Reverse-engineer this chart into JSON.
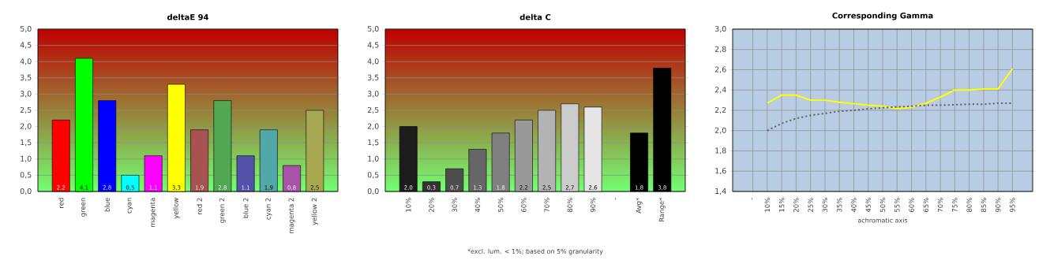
{
  "chart_data": [
    {
      "type": "bar",
      "title": "deltaE 94",
      "categories": [
        "red",
        "green",
        "blue",
        "cyan",
        "magenta",
        "yellow",
        "red 2",
        "green 2",
        "blue 2",
        "cyan 2",
        "magenta 2",
        "yellow 2"
      ],
      "values": [
        2.2,
        4.1,
        2.8,
        0.5,
        1.1,
        3.3,
        1.9,
        2.8,
        1.1,
        1.9,
        0.8,
        2.5
      ],
      "value_labels": [
        "2,2",
        "4,1",
        "2,8",
        "0,5",
        "1,1",
        "3,3",
        "1,9",
        "2,8",
        "1,1",
        "1,9",
        "0,8",
        "2,5"
      ],
      "colors": [
        "#ff0000",
        "#00ff00",
        "#0000ff",
        "#00ffff",
        "#ff00ff",
        "#ffff00",
        "#a85252",
        "#52a852",
        "#5252a8",
        "#52a8a8",
        "#a852a8",
        "#a8a852"
      ],
      "ylim": [
        0,
        5
      ],
      "yticks": [
        {
          "value": 0,
          "label": "0,0"
        },
        {
          "value": 0.5,
          "label": "0,5"
        },
        {
          "value": 1,
          "label": "1,0"
        },
        {
          "value": 1.5,
          "label": "1,5"
        },
        {
          "value": 2,
          "label": "2,0"
        },
        {
          "value": 2.5,
          "label": "2,5"
        },
        {
          "value": 3,
          "label": "3,0"
        },
        {
          "value": 3.5,
          "label": "3,5"
        },
        {
          "value": 4,
          "label": "4,0"
        },
        {
          "value": 4.5,
          "label": "4,5"
        },
        {
          "value": 5,
          "label": "5,0"
        }
      ],
      "grid": "y"
    },
    {
      "type": "bar",
      "title": "delta C",
      "categories": [
        "10%",
        "20%",
        "30%",
        "40%",
        "50%",
        "60%",
        "70%",
        "80%",
        "90%",
        "-",
        "Avg*",
        "Range*"
      ],
      "values": [
        2.0,
        0.3,
        0.7,
        1.3,
        1.8,
        2.2,
        2.5,
        2.7,
        2.6,
        null,
        1.8,
        3.8
      ],
      "value_labels": [
        "2,0",
        "0,3",
        "0,7",
        "1,3",
        "1,8",
        "2,2",
        "2,5",
        "2,7",
        "2,6",
        null,
        "1,8",
        "3,8"
      ],
      "colors": [
        "#1c1c1c",
        "#333333",
        "#4d4d4d",
        "#666666",
        "#808080",
        "#999999",
        "#b3b3b3",
        "#cccccc",
        "#e6e6e6",
        "#000000",
        "#000000",
        "#000000"
      ],
      "ylim": [
        0,
        5
      ],
      "yticks": [
        {
          "value": 0,
          "label": "0,0"
        },
        {
          "value": 0.5,
          "label": "0,5"
        },
        {
          "value": 1,
          "label": "1,0"
        },
        {
          "value": 1.5,
          "label": "1,5"
        },
        {
          "value": 2,
          "label": "2,0"
        },
        {
          "value": 2.5,
          "label": "2,5"
        },
        {
          "value": 3,
          "label": "3,0"
        },
        {
          "value": 3.5,
          "label": "3,5"
        },
        {
          "value": 4,
          "label": "4,0"
        },
        {
          "value": 4.5,
          "label": "4,5"
        },
        {
          "value": 5,
          "label": "5,0"
        }
      ],
      "grid": "y",
      "annotations": [
        "*excl. lum. < 1%; based on 5% granularity"
      ]
    },
    {
      "type": "line",
      "title": "Corresponding Gamma",
      "xlabel": "achromatic axis",
      "categories": [
        "-",
        "10%",
        "15%",
        "20%",
        "25%",
        "30%",
        "35%",
        "40%",
        "45%",
        "50%",
        "55%",
        "60%",
        "65%",
        "70%",
        "75%",
        "80%",
        "85%",
        "90%",
        "95%"
      ],
      "series": [
        {
          "color": "#ffff00",
          "line_style": "solid",
          "values": [
            null,
            2.27,
            2.35,
            2.35,
            2.3,
            2.3,
            2.28,
            2.265,
            2.25,
            2.24,
            2.215,
            2.23,
            2.27,
            2.33,
            2.4,
            2.4,
            2.41,
            2.41,
            2.61
          ]
        },
        {
          "color": "#666666",
          "line_style": "dotted",
          "values": [
            null,
            2.0,
            2.07,
            2.12,
            2.15,
            2.17,
            2.19,
            2.2,
            2.215,
            2.225,
            2.235,
            2.24,
            2.25,
            2.25,
            2.255,
            2.26,
            2.26,
            2.27,
            2.27
          ]
        }
      ],
      "ylim": [
        1.4,
        3.0
      ],
      "yticks": [
        {
          "value": 1.4,
          "label": "1,4"
        },
        {
          "value": 1.6,
          "label": "1,6"
        },
        {
          "value": 1.8,
          "label": "1,8"
        },
        {
          "value": 2.0,
          "label": "2,0"
        },
        {
          "value": 2.2,
          "label": "2,2"
        },
        {
          "value": 2.4,
          "label": "2,4"
        },
        {
          "value": 2.6,
          "label": "2,6"
        },
        {
          "value": 2.8,
          "label": "2,8"
        },
        {
          "value": 3.0,
          "label": "3,0"
        }
      ],
      "grid": true,
      "marker": "none"
    }
  ]
}
